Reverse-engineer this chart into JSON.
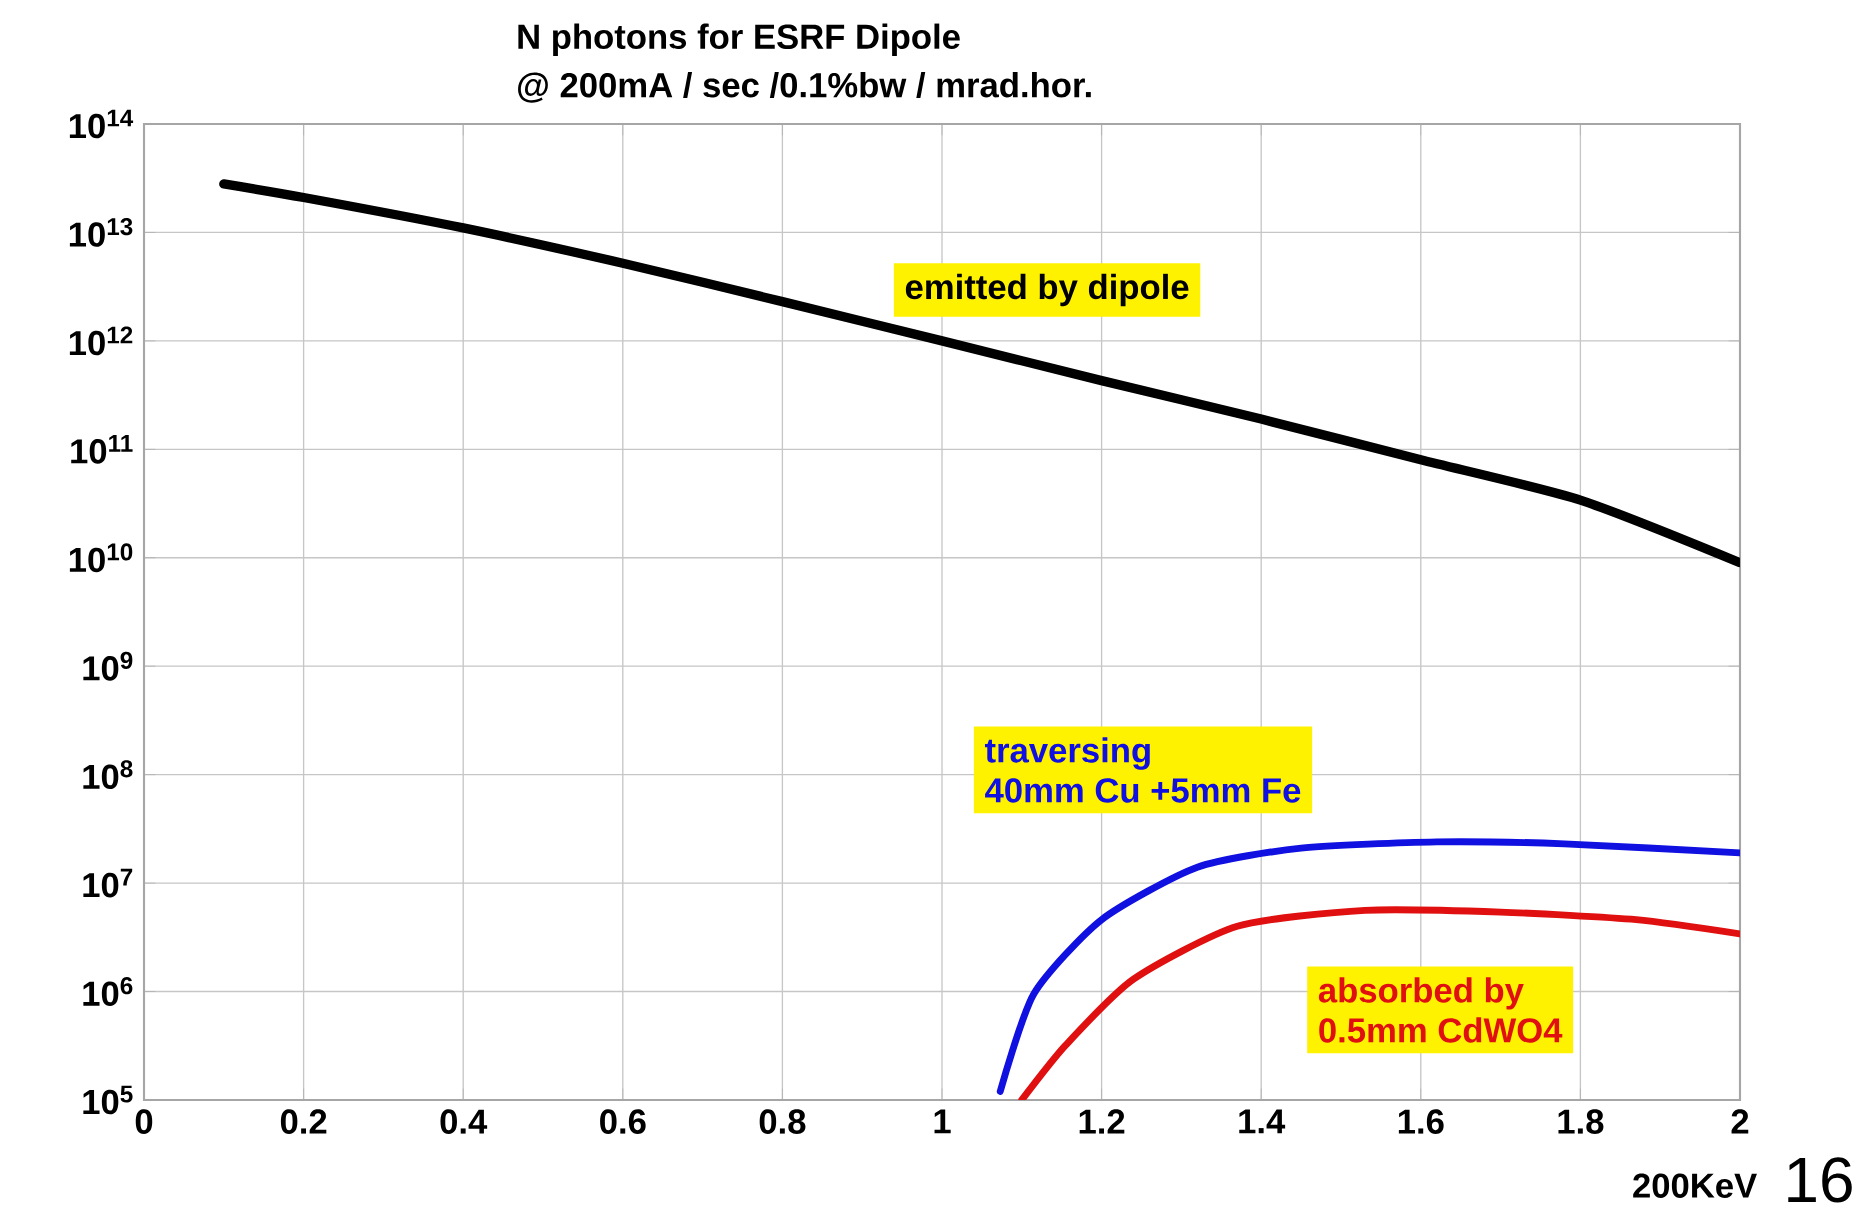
{
  "chart_data": {
    "type": "line",
    "title": "N photons for ESRF Dipole",
    "subtitle": "@ 200mA / sec /0.1%bw / mrad.hor.",
    "xlabel": "200KeV",
    "log": "y",
    "grid": true,
    "xlim": [
      0,
      2
    ],
    "ylim": [
      100000,
      100000000000000
    ],
    "xticks": [
      0,
      0.2,
      0.4,
      0.6,
      0.8,
      1,
      1.2,
      1.4,
      1.6,
      1.8,
      2
    ],
    "yticks": [
      {
        "value": 100000,
        "label": "10$^{5}$"
      },
      {
        "value": 1000000,
        "label": "10$^{6}$"
      },
      {
        "value": 10000000,
        "label": "10$^{7}$"
      },
      {
        "value": 100000000,
        "label": "10$^{8}$"
      },
      {
        "value": 1000000000,
        "label": "10$^{9}$"
      },
      {
        "value": 10000000000,
        "label": "10$^{10}$"
      },
      {
        "value": 100000000000,
        "label": "10$^{11}$"
      },
      {
        "value": 1000000000000,
        "label": "10$^{12}$"
      },
      {
        "value": 10000000000000,
        "label": "10$^{13}$"
      },
      {
        "value": 100000000000000,
        "label": "10$^{14}$"
      }
    ],
    "series": [
      {
        "color": "#000000",
        "x": [
          0.1,
          0.2,
          0.4,
          0.6,
          0.8,
          1.0,
          1.2,
          1.4,
          1.6,
          1.8,
          2.0
        ],
        "values": [
          28000000000000,
          21000000000000,
          11000000000000,
          5200000000000,
          2300000000000,
          1000000000000,
          430000000000,
          190000000000,
          80000000000,
          34000000000,
          9000000000
        ]
      },
      {
        "color": "#1010e0",
        "x": [
          1.073,
          1.115,
          1.2,
          1.32,
          1.45,
          1.62,
          1.78,
          2.0
        ],
        "values": [
          120000,
          950000,
          4600000,
          14000000,
          21000000,
          24000000,
          23000000,
          19000000
        ]
      },
      {
        "color": "#e01010",
        "x": [
          1.1,
          1.155,
          1.24,
          1.37,
          1.53,
          1.7,
          1.87,
          2.0
        ],
        "values": [
          100000,
          320000,
          1300000,
          4000000,
          5600000,
          5400000,
          4600000,
          3400000
        ]
      }
    ],
    "annotations": [
      "emitted by dipole",
      "traversing\n40mm Cu +5mm Fe",
      "absorbed by\n0.5mm CdWO4",
      "16"
    ]
  }
}
